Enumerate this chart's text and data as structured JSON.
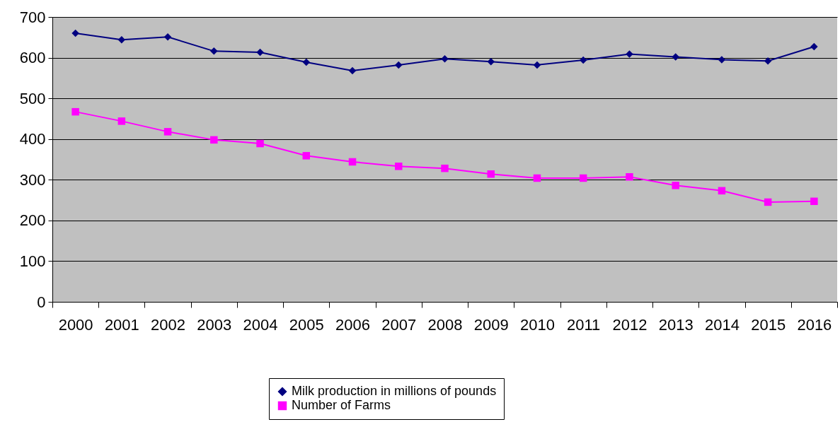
{
  "chart_data": {
    "type": "line",
    "categories": [
      "2000",
      "2001",
      "2002",
      "2003",
      "2004",
      "2005",
      "2006",
      "2007",
      "2008",
      "2009",
      "2010",
      "2011",
      "2012",
      "2013",
      "2014",
      "2015",
      "2016"
    ],
    "series": [
      {
        "name": "Milk production in millions of pounds",
        "color": "#000080",
        "marker": "diamond",
        "values": [
          660,
          644,
          651,
          616,
          613,
          589,
          568,
          582,
          597,
          590,
          582,
          594,
          609,
          602,
          595,
          592,
          627
        ]
      },
      {
        "name": "Number of Farms",
        "color": "#ff00ff",
        "marker": "square",
        "values": [
          467,
          444,
          418,
          398,
          389,
          359,
          344,
          333,
          328,
          314,
          304,
          304,
          307,
          286,
          273,
          245,
          247
        ]
      }
    ],
    "ylim": [
      0,
      700
    ],
    "yticks": [
      0,
      100,
      200,
      300,
      400,
      500,
      600,
      700
    ],
    "grid": "y",
    "legend": "bottom",
    "line_style": "solid"
  }
}
